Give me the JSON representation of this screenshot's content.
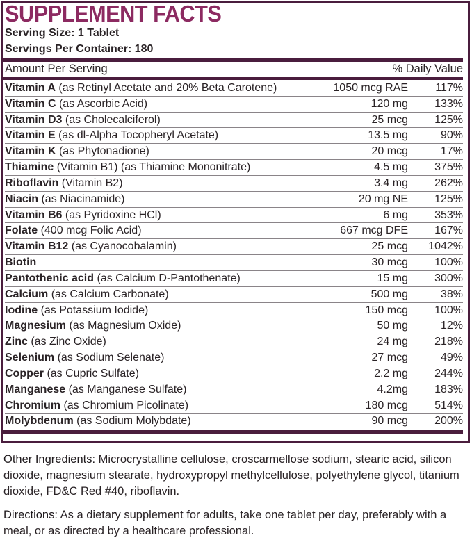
{
  "title": "SUPPLEMENT FACTS",
  "serving_size": "Serving Size: 1 Tablet",
  "servings_per_container": "Servings Per Container: 180",
  "header": {
    "amount": "Amount Per Serving",
    "dv": "% Daily Value"
  },
  "rows": [
    {
      "name": "Vitamin A",
      "source": "(as Retinyl Acetate and 20% Beta Carotene)",
      "amount": "1050 mcg RAE",
      "dv": "117%"
    },
    {
      "name": "Vitamin C",
      "source": "(as Ascorbic Acid)",
      "amount": "120 mg",
      "dv": "133%"
    },
    {
      "name": "Vitamin D3",
      "source": "(as Cholecalciferol)",
      "amount": "25 mcg",
      "dv": "125%"
    },
    {
      "name": "Vitamin E",
      "source": "(as dl-Alpha Tocopheryl Acetate)",
      "amount": "13.5 mg",
      "dv": "90%"
    },
    {
      "name": "Vitamin K",
      "source": "(as Phytonadione)",
      "amount": "20 mcg",
      "dv": "17%"
    },
    {
      "name": "Thiamine",
      "source": "(Vitamin B1) (as Thiamine Mononitrate)",
      "amount": "4.5 mg",
      "dv": "375%"
    },
    {
      "name": "Riboflavin",
      "source": "(Vitamin B2)",
      "amount": "3.4 mg",
      "dv": "262%"
    },
    {
      "name": "Niacin",
      "source": "(as Niacinamide)",
      "amount": "20 mg NE",
      "dv": "125%"
    },
    {
      "name": "Vitamin B6",
      "source": "(as Pyridoxine HCl)",
      "amount": "6 mg",
      "dv": "353%"
    },
    {
      "name": "Folate",
      "source": "(400 mcg Folic Acid)",
      "amount": "667 mcg DFE",
      "dv": "167%"
    },
    {
      "name": "Vitamin B12",
      "source": "(as Cyanocobalamin)",
      "amount": "25 mcg",
      "dv": "1042%"
    },
    {
      "name": "Biotin",
      "source": "",
      "amount": "30 mcg",
      "dv": "100%"
    },
    {
      "name": "Pantothenic acid",
      "source": "(as Calcium D-Pantothenate)",
      "amount": "15 mg",
      "dv": "300%"
    },
    {
      "name": "Calcium",
      "source": "(as Calcium Carbonate)",
      "amount": "500 mg",
      "dv": "38%"
    },
    {
      "name": "Iodine",
      "source": "(as Potassium Iodide)",
      "amount": "150 mcg",
      "dv": "100%"
    },
    {
      "name": "Magnesium",
      "source": "(as Magnesium Oxide)",
      "amount": "50 mg",
      "dv": "12%"
    },
    {
      "name": "Zinc",
      "source": "(as Zinc Oxide)",
      "amount": "24 mg",
      "dv": "218%"
    },
    {
      "name": "Selenium",
      "source": "(as Sodium Selenate)",
      "amount": "27 mcg",
      "dv": "49%"
    },
    {
      "name": "Copper",
      "source": "(as Cupric Sulfate)",
      "amount": "2.2 mg",
      "dv": "244%"
    },
    {
      "name": "Manganese",
      "source": "(as Manganese Sulfate)",
      "amount": "4.2mg",
      "dv": "183%"
    },
    {
      "name": "Chromium",
      "source": "(as Chromium Picolinate)",
      "amount": "180 mcg",
      "dv": "514%"
    },
    {
      "name": "Molybdenum",
      "source": "(as Sodium Molybdate)",
      "amount": "90 mcg",
      "dv": "200%"
    }
  ],
  "other_ingredients": {
    "label": "Other Ingredients:",
    "text": "Microcrystalline cellulose, croscarmellose sodium, stearic acid, silicon dioxide, magnesium stearate, hydroxypropyl methylcellulose, polyethylene glycol, titanium dioxide, FD&C Red #40, riboflavin."
  },
  "directions": {
    "label": "Directions:",
    "text": "As a dietary supplement for adults, take one tablet per day, preferably with a meal, or as directed by a healthcare professional."
  },
  "colors": {
    "title": "#8c2a61",
    "border": "#4a1d3d"
  }
}
